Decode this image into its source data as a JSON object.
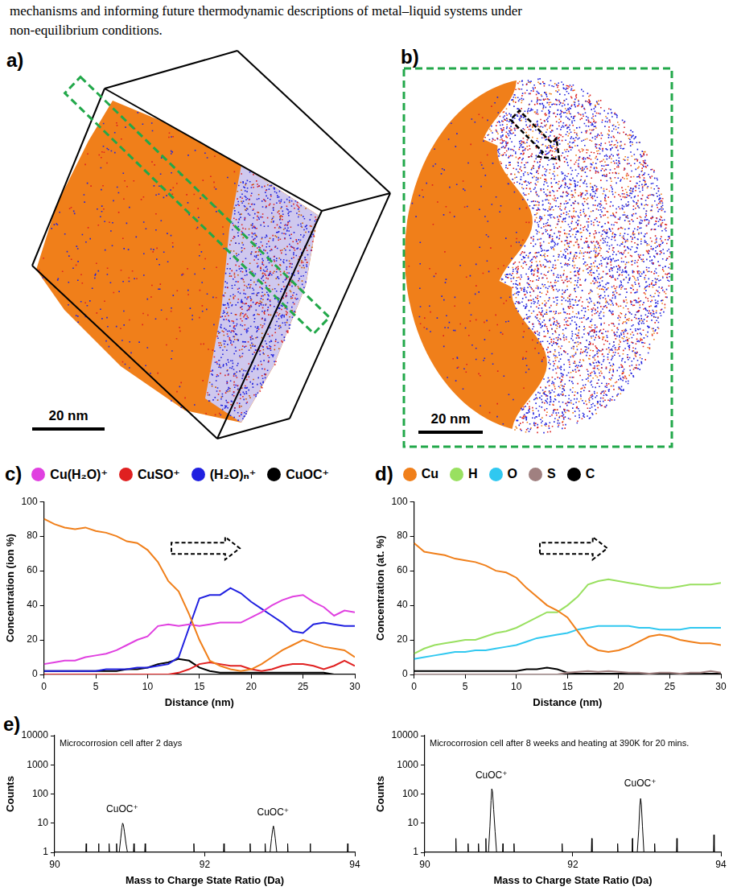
{
  "paragraph": [
    "mechanisms and informing future thermodynamic descriptions of metal–liquid systems under",
    "non-equilibrium conditions."
  ],
  "panels": [
    {
      "letter": "a)",
      "scale_bar": "20 nm"
    },
    {
      "letter": "b)",
      "scale_bar": "20 nm"
    }
  ],
  "chart_data": [
    {
      "type": "line",
      "letter": "c)",
      "legend": "top",
      "grid": false,
      "xlabel": "Distance (nm)",
      "ylabel": "Concentration (ion %)",
      "xlim": [
        0,
        30
      ],
      "xticks": [
        0,
        5,
        10,
        15,
        20,
        25,
        30
      ],
      "ylim": [
        0,
        100
      ],
      "yticks": [
        0,
        20,
        40,
        60,
        80,
        100
      ],
      "x": [
        0,
        1,
        2,
        3,
        4,
        5,
        6,
        7,
        8,
        9,
        10,
        11,
        12,
        13,
        14,
        15,
        16,
        17,
        18,
        19,
        20,
        21,
        22,
        23,
        24,
        25,
        26,
        27,
        28,
        29,
        30
      ],
      "series": [
        {
          "color": "#f07f1a",
          "values": [
            90,
            87,
            85,
            84,
            85,
            83,
            82,
            80,
            77,
            76,
            72,
            65,
            54,
            48,
            35,
            20,
            8,
            5,
            3,
            2,
            3,
            6,
            10,
            14,
            17,
            20,
            18,
            16,
            15,
            14,
            10
          ]
        },
        {
          "name": "Cu(H₂O)⁺",
          "color": "#e040e0",
          "values": [
            6,
            7,
            8,
            8,
            10,
            11,
            12,
            14,
            17,
            20,
            22,
            28,
            29,
            28,
            29,
            28,
            29,
            30,
            30,
            30,
            33,
            36,
            40,
            43,
            45,
            46,
            42,
            39,
            34,
            37,
            36
          ]
        },
        {
          "name": "CuSO⁺",
          "color": "#e02020",
          "values": [
            0,
            0,
            0,
            0,
            0,
            0,
            0,
            0,
            0,
            0,
            0,
            0,
            0,
            1,
            3,
            6,
            7,
            6,
            5,
            5,
            3,
            2,
            3,
            5,
            6,
            6,
            5,
            3,
            5,
            8,
            5
          ]
        },
        {
          "name": "(H₂O)ₙ⁺",
          "color": "#2020e0",
          "values": [
            2,
            2,
            2,
            2,
            2,
            2,
            3,
            3,
            3,
            4,
            4,
            5,
            6,
            10,
            27,
            44,
            46,
            46,
            50,
            47,
            42,
            38,
            34,
            30,
            25,
            24,
            29,
            30,
            29,
            28,
            28
          ]
        },
        {
          "name": "CuOC⁺",
          "color": "#000000",
          "values": [
            2,
            2,
            2,
            2,
            2,
            2,
            2,
            2,
            3,
            3,
            4,
            6,
            7,
            9,
            8,
            4,
            2,
            1,
            1,
            1,
            1,
            1,
            1,
            1,
            1,
            1,
            1,
            1,
            0,
            0,
            0
          ]
        }
      ]
    },
    {
      "type": "line",
      "letter": "d)",
      "legend": "top",
      "grid": false,
      "xlabel": "Distance (nm)",
      "ylabel": "Concentration (at. %)",
      "xlim": [
        0,
        30
      ],
      "xticks": [
        0,
        5,
        10,
        15,
        20,
        25,
        30
      ],
      "ylim": [
        0,
        100
      ],
      "yticks": [
        0,
        20,
        40,
        60,
        80,
        100
      ],
      "x": [
        0,
        1,
        2,
        3,
        4,
        5,
        6,
        7,
        8,
        9,
        10,
        11,
        12,
        13,
        14,
        15,
        16,
        17,
        18,
        19,
        20,
        21,
        22,
        23,
        24,
        25,
        26,
        27,
        28,
        29,
        30
      ],
      "series": [
        {
          "name": "Cu",
          "color": "#f07f1a",
          "values": [
            76,
            71,
            70,
            69,
            67,
            66,
            65,
            63,
            60,
            59,
            56,
            50,
            45,
            40,
            37,
            33,
            25,
            17,
            14,
            13,
            14,
            16,
            19,
            22,
            23,
            22,
            20,
            19,
            18,
            18,
            17
          ]
        },
        {
          "name": "H",
          "color": "#99e060",
          "values": [
            12,
            15,
            17,
            18,
            19,
            20,
            20,
            22,
            24,
            25,
            27,
            30,
            33,
            36,
            36,
            40,
            45,
            52,
            54,
            55,
            54,
            53,
            52,
            51,
            50,
            50,
            51,
            52,
            52,
            52,
            53
          ]
        },
        {
          "name": "O",
          "color": "#30c8f0",
          "values": [
            9,
            10,
            11,
            12,
            13,
            13,
            14,
            14,
            15,
            16,
            17,
            19,
            21,
            22,
            23,
            24,
            26,
            27,
            28,
            28,
            28,
            28,
            27,
            27,
            26,
            26,
            26,
            27,
            27,
            27,
            27
          ]
        },
        {
          "name": "S",
          "color": "#a08080",
          "values": [
            0,
            0,
            0,
            0,
            0,
            0,
            0,
            0,
            0,
            0,
            0,
            0,
            0,
            0,
            0,
            1,
            1.5,
            2,
            1.5,
            2,
            1.5,
            1,
            1,
            0.5,
            1,
            1,
            0.5,
            1,
            1,
            2,
            1
          ]
        },
        {
          "name": "C",
          "color": "#000000",
          "values": [
            2,
            2,
            2,
            2,
            2,
            2,
            2,
            2,
            2,
            2,
            2,
            3,
            3,
            4,
            3,
            1,
            0.5,
            0.5,
            0.5,
            0.5,
            0.5,
            0.5,
            0.5,
            0.5,
            0.5,
            0.5,
            0.5,
            0.5,
            0.5,
            0.5,
            0.5
          ]
        }
      ]
    },
    {
      "type": "line",
      "letter": "e)",
      "title": "Microcorrosion cell after 2 days",
      "grid": false,
      "log": "y",
      "xlabel": "Mass to Charge State Ratio (Da)",
      "ylabel": "Counts",
      "xlim": [
        90,
        94
      ],
      "xticks": [
        90,
        92,
        94
      ],
      "ylim": [
        1,
        10000
      ],
      "yticks": [
        1,
        10,
        100,
        1000,
        10000
      ],
      "x": [
        90,
        90.415,
        90.42,
        90.425,
        90.58,
        90.585,
        90.59,
        90.72,
        90.725,
        90.73,
        90.82,
        90.825,
        90.83,
        90.86,
        90.88,
        90.895,
        90.905,
        90.915,
        90.93,
        90.95,
        90.97,
        91.05,
        91.055,
        91.06,
        91.2,
        91.205,
        91.21,
        91.85,
        91.855,
        91.86,
        92.25,
        92.255,
        92.26,
        92.6,
        92.605,
        92.61,
        92.8,
        92.805,
        92.81,
        92.87,
        92.89,
        92.905,
        92.915,
        92.925,
        92.94,
        92.96,
        93.1,
        93.105,
        93.11,
        93.4,
        93.405,
        93.41,
        93.9,
        93.905,
        93.91,
        94
      ],
      "series": [
        {
          "color": "#000000",
          "values": [
            1,
            1,
            2,
            1,
            1,
            2,
            1,
            1,
            2,
            1,
            1,
            2,
            1,
            1,
            3,
            7,
            10,
            9,
            5,
            2,
            1,
            1,
            2,
            1,
            1,
            2,
            1,
            1,
            2,
            1,
            1,
            2,
            1,
            1,
            2,
            1,
            1,
            2,
            1,
            1,
            3,
            6,
            8,
            6,
            3,
            1,
            1,
            2,
            1,
            1,
            2,
            1,
            1,
            2,
            1,
            1
          ]
        }
      ],
      "annotations": [
        {
          "text": "CuOC⁺",
          "x": 90.9,
          "y": 20
        },
        {
          "text": "CuOC⁺",
          "x": 92.91,
          "y": 16
        }
      ]
    },
    {
      "type": "line",
      "title": "Microcorrosion cell after 8 weeks and heating at 390K for 20 mins.",
      "grid": false,
      "log": "y",
      "xlabel": "Mass to Charge State Ratio (Da)",
      "ylabel": "Counts",
      "xlim": [
        90,
        94
      ],
      "xticks": [
        90,
        92,
        94
      ],
      "ylim": [
        1,
        10000
      ],
      "yticks": [
        1,
        10,
        100,
        1000,
        10000
      ],
      "x": [
        90,
        90.415,
        90.42,
        90.425,
        90.58,
        90.585,
        90.59,
        90.72,
        90.725,
        90.73,
        90.82,
        90.825,
        90.83,
        90.86,
        90.88,
        90.895,
        90.905,
        90.915,
        90.93,
        90.95,
        90.97,
        91.05,
        91.055,
        91.06,
        91.2,
        91.205,
        91.21,
        91.85,
        91.855,
        91.86,
        92.25,
        92.255,
        92.26,
        92.6,
        92.605,
        92.61,
        92.8,
        92.805,
        92.81,
        92.87,
        92.89,
        92.905,
        92.915,
        92.925,
        92.94,
        92.96,
        93.1,
        93.105,
        93.11,
        93.4,
        93.405,
        93.41,
        93.9,
        93.905,
        93.91,
        94
      ],
      "series": [
        {
          "color": "#000000",
          "values": [
            1,
            1,
            3,
            1,
            1,
            2,
            1,
            1,
            2,
            1,
            1,
            3,
            1,
            1,
            8,
            60,
            150,
            120,
            30,
            5,
            1,
            1,
            2,
            1,
            1,
            2,
            1,
            1,
            2,
            1,
            1,
            3,
            1,
            1,
            2,
            1,
            1,
            3,
            1,
            1,
            6,
            40,
            70,
            45,
            8,
            1,
            1,
            2,
            1,
            1,
            3,
            1,
            1,
            4,
            1,
            1
          ]
        }
      ],
      "annotations": [
        {
          "text": "CuOC⁺",
          "x": 90.9,
          "y": 300
        },
        {
          "text": "CuOC⁺",
          "x": 92.91,
          "y": 150
        }
      ]
    }
  ]
}
